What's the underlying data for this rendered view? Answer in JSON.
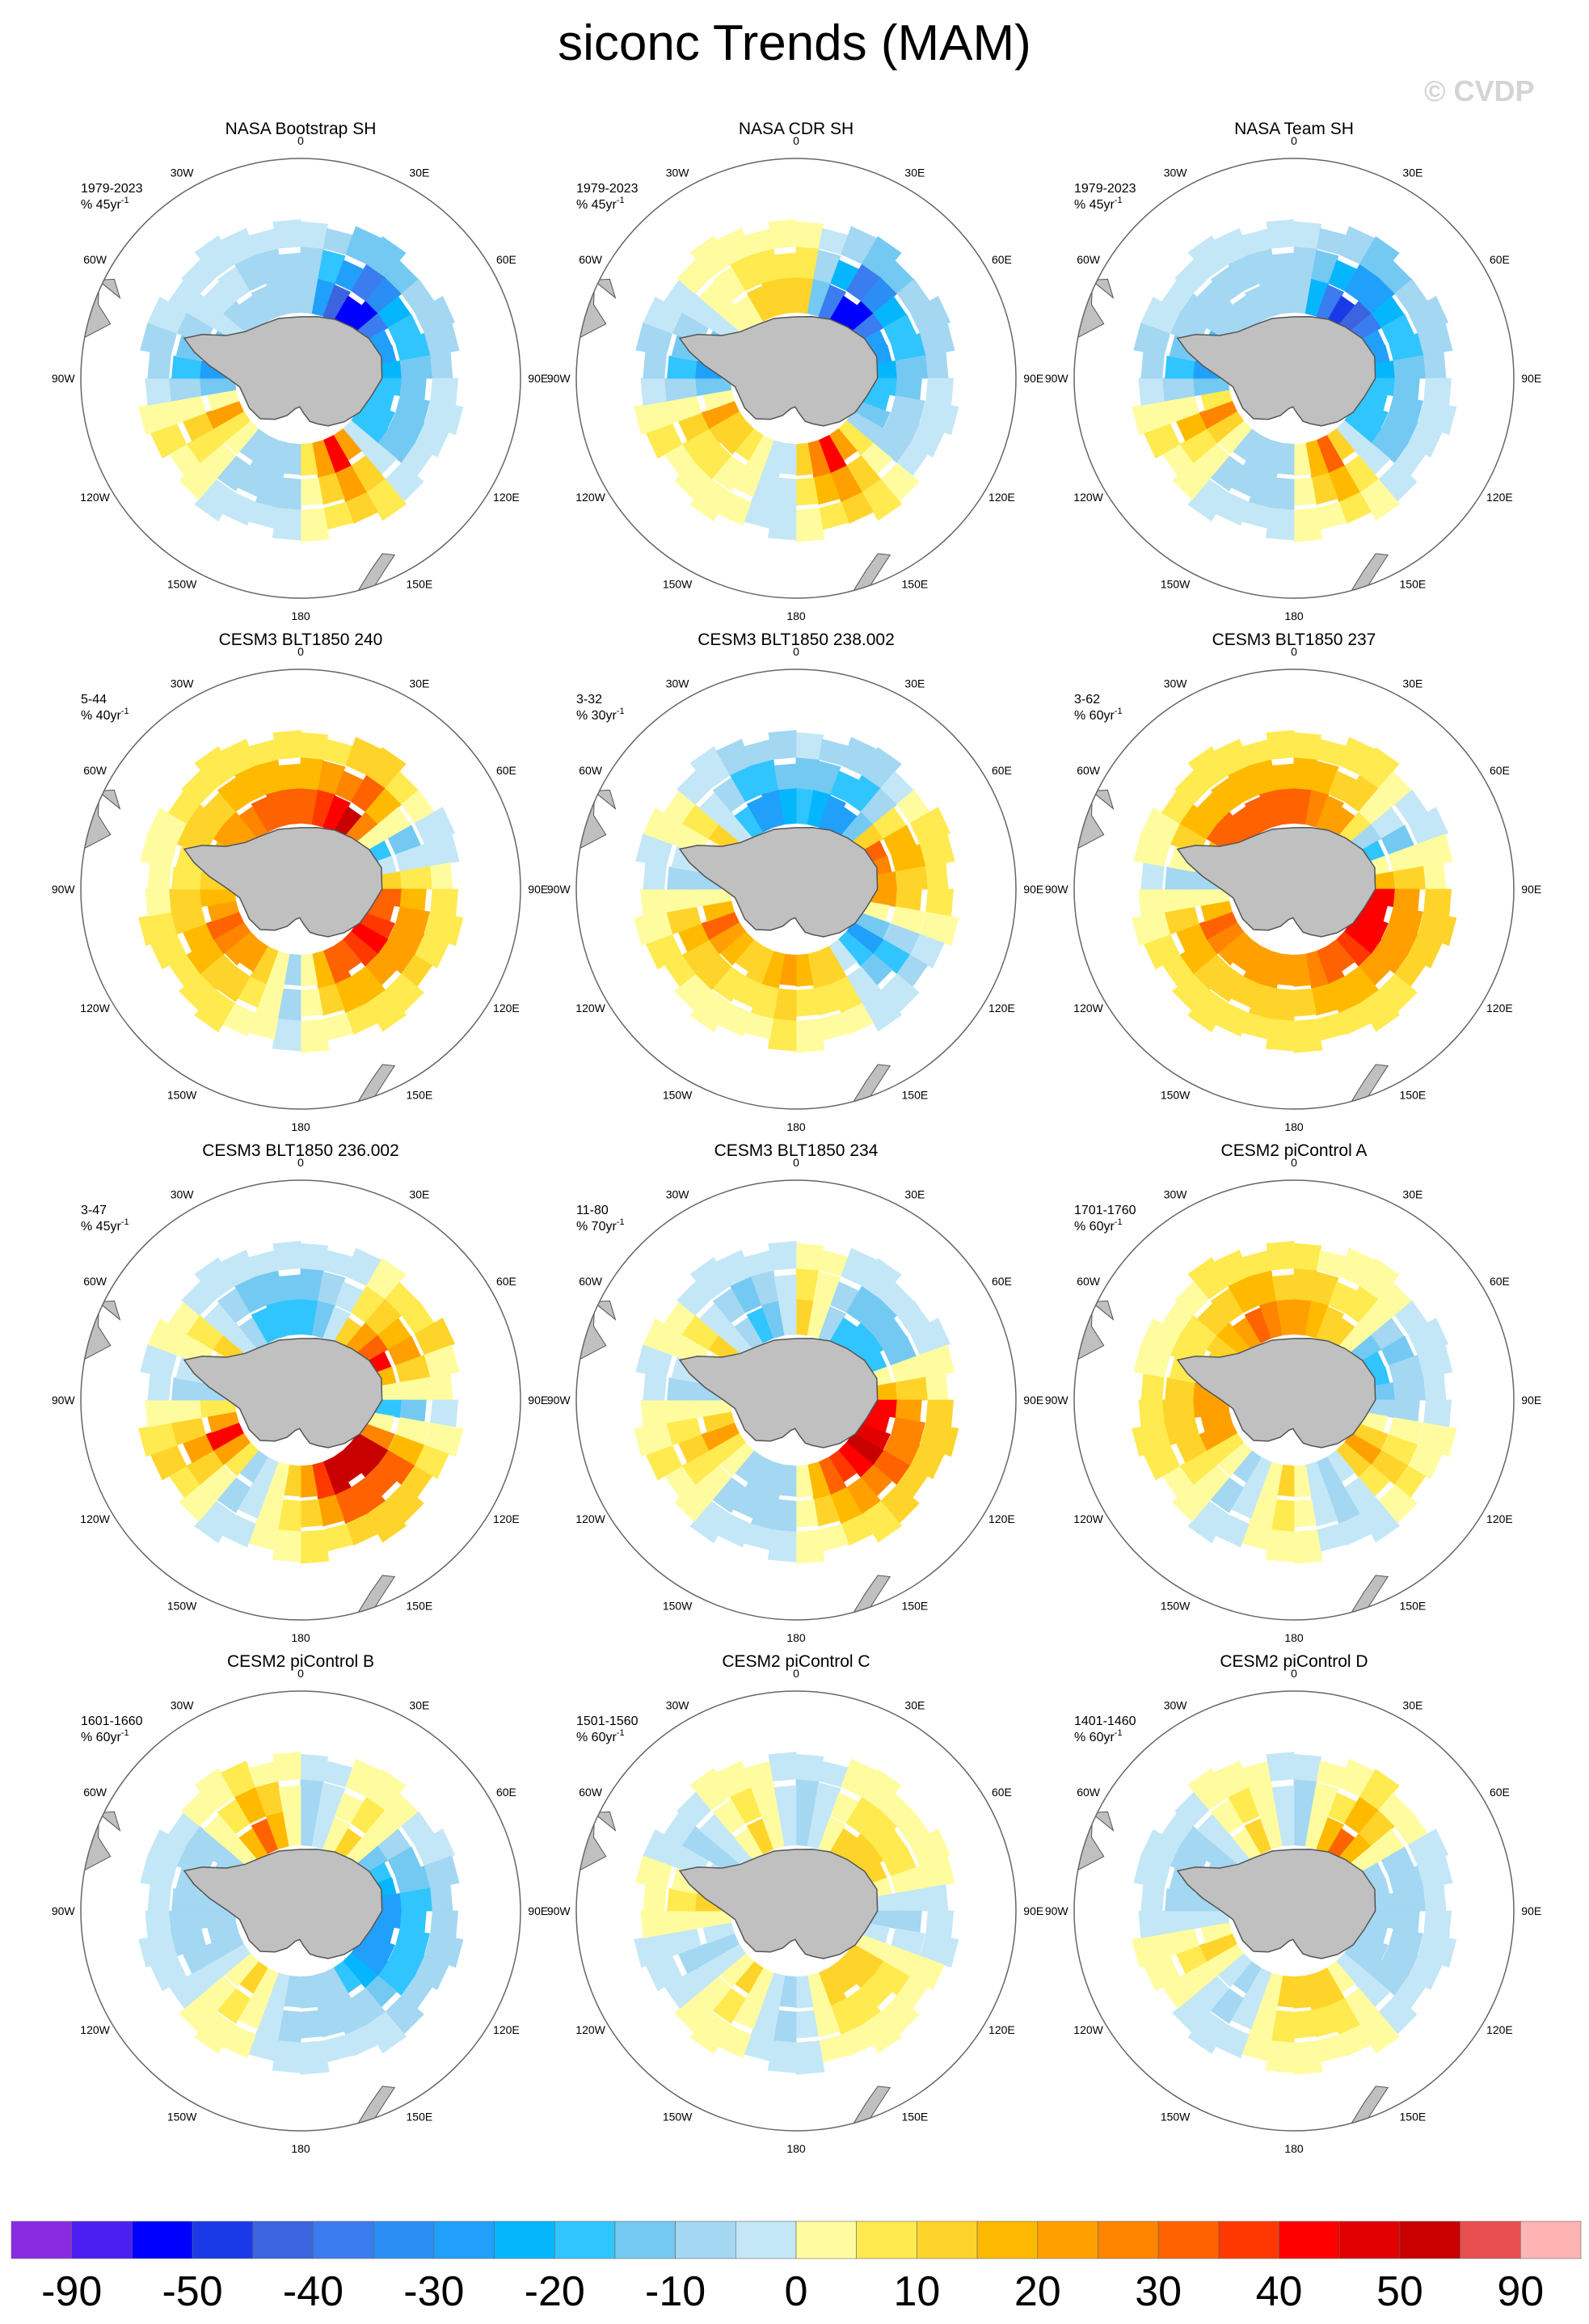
{
  "title": "siconc Trends (MAM)",
  "watermark": "© CVDP",
  "lon_labels": [
    "0",
    "30E",
    "60E",
    "90E",
    "120E",
    "150E",
    "180",
    "150W",
    "120W",
    "90W",
    "60W",
    "30W"
  ],
  "panels": [
    {
      "title": "NASA Bootstrap SH",
      "period": "1979-2023",
      "units": "% 45yr",
      "units_sup": "-1",
      "pattern": [
        -10,
        -60,
        -30,
        -20,
        -20,
        40,
        -10,
        -10,
        20,
        -30,
        -5,
        -10
      ]
    },
    {
      "title": "NASA CDR SH",
      "period": "1979-2023",
      "units": "% 45yr",
      "units_sup": "-1",
      "pattern": [
        10,
        -60,
        -30,
        -20,
        -10,
        40,
        -5,
        5,
        20,
        -30,
        -5,
        10
      ]
    },
    {
      "title": "NASA Team SH",
      "period": "1979-2023",
      "units": "% 45yr",
      "units_sup": "-1",
      "pattern": [
        -10,
        -50,
        -30,
        -20,
        -20,
        30,
        -10,
        -10,
        25,
        -30,
        -10,
        -10
      ]
    },
    {
      "title": "CESM3 BLT1850 240",
      "period": "5-44",
      "units": "% 40yr",
      "units_sup": "-1",
      "pattern": [
        30,
        50,
        -20,
        30,
        40,
        30,
        -10,
        20,
        30,
        10,
        20,
        30
      ]
    },
    {
      "title": "CESM3 BLT1850 238.002",
      "period": "3-32",
      "units": "% 30yr",
      "units_sup": "-1",
      "pattern": [
        -20,
        -30,
        30,
        20,
        -30,
        10,
        20,
        10,
        30,
        -10,
        10,
        -30
      ]
    },
    {
      "title": "CESM3 BLT1850 237",
      "period": "3-62",
      "units": "% 60yr",
      "units_sup": "-1",
      "pattern": [
        30,
        20,
        -20,
        40,
        40,
        30,
        20,
        20,
        30,
        -10,
        30,
        30
      ]
    },
    {
      "title": "CESM3 BLT1850 236.002",
      "period": "3-47",
      "units": "% 45yr",
      "units_sup": "-1",
      "pattern": [
        -20,
        10,
        40,
        -20,
        50,
        50,
        10,
        -10,
        40,
        -10,
        10,
        -20
      ]
    },
    {
      "title": "CESM3 BLT1850 234",
      "period": "11-80",
      "units": "% 70yr",
      "units_sup": "-1",
      "pattern": [
        10,
        -20,
        -20,
        40,
        50,
        30,
        -10,
        -10,
        20,
        -10,
        10,
        -20
      ]
    },
    {
      "title": "CESM2 piControl A",
      "period": "1701-1760",
      "units": "% 60yr",
      "units_sup": "-1",
      "pattern": [
        20,
        10,
        -20,
        -10,
        20,
        -10,
        10,
        -10,
        20,
        20,
        10,
        30
      ]
    },
    {
      "title": "CESM2 piControl B",
      "period": "1601-1660",
      "units": "% 60yr",
      "units_sup": "-1",
      "pattern": [
        -10,
        10,
        -20,
        -30,
        -30,
        -10,
        -10,
        10,
        -10,
        -10,
        -10,
        30
      ]
    },
    {
      "title": "CESM2 piControl C",
      "period": "1501-1560",
      "units": "% 60yr",
      "units_sup": "-1",
      "pattern": [
        -10,
        10,
        10,
        -10,
        10,
        10,
        -10,
        10,
        -10,
        10,
        -10,
        10
      ]
    },
    {
      "title": "CESM2 piControl D",
      "period": "1401-1460",
      "units": "% 60yr",
      "units_sup": "-1",
      "pattern": [
        -10,
        30,
        -10,
        -10,
        -10,
        10,
        10,
        -10,
        10,
        -10,
        -10,
        10
      ]
    }
  ],
  "colorbar": {
    "colors": [
      "#8a2be2",
      "#4b1ff0",
      "#0000ff",
      "#1a3ae8",
      "#3c63e0",
      "#3b7cf0",
      "#2b8ef5",
      "#20a0fb",
      "#05b6fd",
      "#30c5ff",
      "#74c9f2",
      "#a3d7f2",
      "#c4e7f7",
      "#fffca0",
      "#ffea50",
      "#ffd42a",
      "#ffba00",
      "#ffa000",
      "#ff8400",
      "#ff6200",
      "#ff3800",
      "#ff0000",
      "#e20000",
      "#c80000",
      "#e85050",
      "#ffb4b4"
    ],
    "labels": [
      "-90",
      "-50",
      "-40",
      "-30",
      "-20",
      "-10",
      "0",
      "10",
      "20",
      "30",
      "40",
      "50",
      "90"
    ]
  }
}
